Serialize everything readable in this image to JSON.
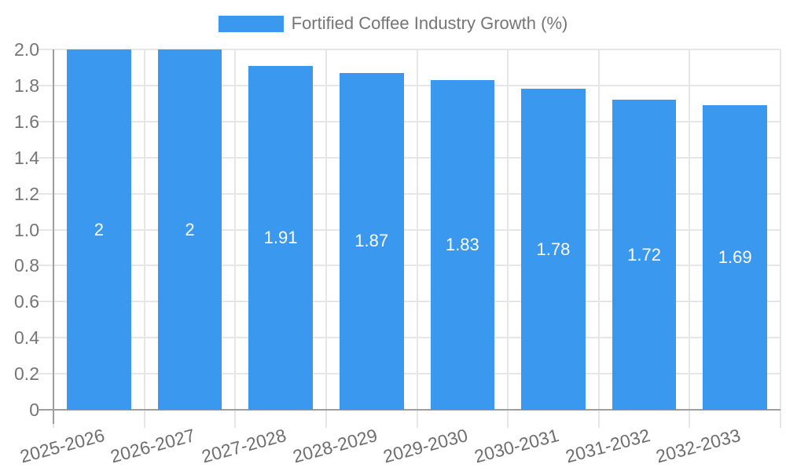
{
  "chart_data": {
    "type": "bar",
    "title": "",
    "legend": {
      "position": "top",
      "label": "Fortified Coffee Industry Growth (%)"
    },
    "categories": [
      "2025-2026",
      "2026-2027",
      "2027-2028",
      "2028-2029",
      "2029-2030",
      "2030-2031",
      "2031-2032",
      "2032-2033"
    ],
    "series": [
      {
        "name": "Fortified Coffee Industry Growth (%)",
        "values": [
          2,
          2,
          1.91,
          1.87,
          1.83,
          1.78,
          1.72,
          1.69
        ],
        "data_labels": [
          "2",
          "2",
          "1.91",
          "1.87",
          "1.83",
          "1.78",
          "1.72",
          "1.69"
        ],
        "color": "#3a99ee"
      }
    ],
    "xlabel": "",
    "ylabel": "",
    "ylim": [
      0,
      2
    ],
    "ytick_interval": 0.2,
    "yticks": [
      0,
      0.2,
      0.4,
      0.6,
      0.8,
      1.0,
      1.2,
      1.4,
      1.6,
      1.8,
      2.0
    ],
    "ytick_labels": [
      "0",
      "0.2",
      "0.4",
      "0.6",
      "0.8",
      "1.0",
      "1.2",
      "1.4",
      "1.6",
      "1.8",
      "2.0"
    ],
    "grid": true,
    "legend_position": "top",
    "colors": {
      "bar": "#3a99ee",
      "gridline": "#e6e6e6",
      "axis": "#9e9e9e",
      "y_tick_text": "#757575",
      "x_tick_text": "#6e6e6e",
      "bar_label_text": "#ffffff",
      "legend_text": "#757575"
    }
  }
}
